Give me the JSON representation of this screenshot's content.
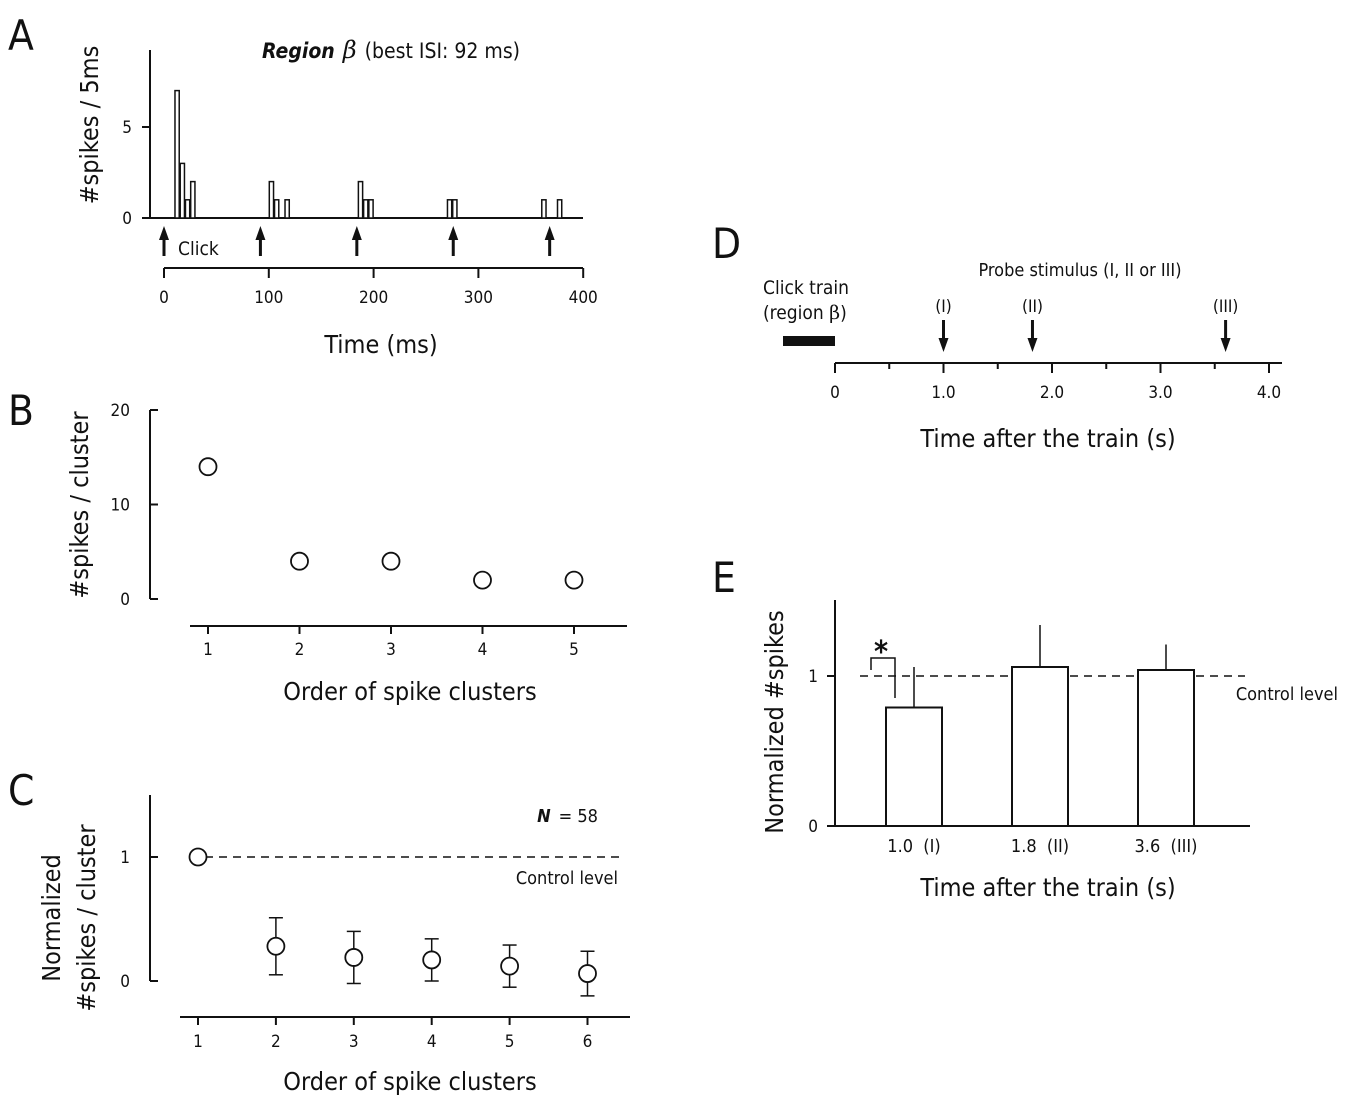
{
  "panels": {
    "A": {
      "label": "A"
    },
    "B": {
      "label": "B"
    },
    "C": {
      "label": "C"
    },
    "D": {
      "label": "D"
    },
    "E": {
      "label": "E"
    }
  },
  "chart_data": [
    {
      "panel": "A",
      "type": "bar",
      "title_italic": "Region",
      "title_symbol": "β",
      "title_rest": "(best ISI: 92 ms)",
      "xlabel": "Time (ms)",
      "ylabel": "#spikes / 5ms",
      "xlim": [
        0,
        400
      ],
      "ylim": [
        0,
        8
      ],
      "xticks": [
        0,
        100,
        200,
        300,
        400
      ],
      "yticks": [
        0,
        5
      ],
      "bin_width_ms": 5,
      "bins": [
        {
          "x": 10,
          "y": 7
        },
        {
          "x": 15,
          "y": 3
        },
        {
          "x": 20,
          "y": 1
        },
        {
          "x": 25,
          "y": 2
        },
        {
          "x": 100,
          "y": 2
        },
        {
          "x": 105,
          "y": 1
        },
        {
          "x": 115,
          "y": 1
        },
        {
          "x": 185,
          "y": 2
        },
        {
          "x": 190,
          "y": 1
        },
        {
          "x": 195,
          "y": 1
        },
        {
          "x": 270,
          "y": 1
        },
        {
          "x": 275,
          "y": 1
        },
        {
          "x": 360,
          "y": 1
        },
        {
          "x": 375,
          "y": 1
        }
      ],
      "click_times_ms": [
        0,
        92,
        184,
        276,
        368
      ],
      "click_label": "Click"
    },
    {
      "panel": "B",
      "type": "scatter",
      "xlabel": "Order of spike clusters",
      "ylabel": "#spikes / cluster",
      "x": [
        1,
        2,
        3,
        4,
        5
      ],
      "y": [
        14,
        4,
        4,
        2,
        2
      ],
      "ylim": [
        0,
        20
      ],
      "yticks": [
        0,
        10,
        20
      ]
    },
    {
      "panel": "C",
      "type": "scatter",
      "xlabel": "Order of spike clusters",
      "ylabel_line1": "Normalized",
      "ylabel_line2": "#spikes / cluster",
      "x": [
        1,
        2,
        3,
        4,
        5,
        6
      ],
      "y": [
        1.0,
        0.28,
        0.19,
        0.17,
        0.12,
        0.06
      ],
      "err": [
        0,
        0.23,
        0.21,
        0.17,
        0.17,
        0.18
      ],
      "ylim": [
        0,
        1.5
      ],
      "yticks": [
        0,
        1
      ],
      "reference_line": 1,
      "reference_label": "Control level",
      "n_label_italic": "N",
      "n_label_rest": "= 58"
    },
    {
      "panel": "D",
      "type": "diagram",
      "xlabel": "Time after the train (s)",
      "xlim": [
        0,
        4.0
      ],
      "xtick_labels": [
        "0",
        "1.0",
        "2.0",
        "3.0",
        "4.0"
      ],
      "xtick_values": [
        0,
        1,
        2,
        3,
        4
      ],
      "train_label_line1": "Click train",
      "train_label_line2_text": "(region ",
      "train_label_line2_symbol": "β",
      "train_label_line2_end": ")",
      "probe_title": "Probe stimulus (I, II or III)",
      "probes": [
        {
          "label": "(I)",
          "t": 1.0
        },
        {
          "label": "(II)",
          "t": 1.82
        },
        {
          "label": "(III)",
          "t": 3.6
        }
      ]
    },
    {
      "panel": "E",
      "type": "bar",
      "xlabel": "Time after the train (s)",
      "ylabel": "Normalized  #spikes",
      "categories": [
        "1.0  (I)",
        "1.8  (II)",
        "3.6  (III)"
      ],
      "values": [
        0.79,
        1.06,
        1.04
      ],
      "err": [
        0.27,
        0.28,
        0.17
      ],
      "ylim": [
        0,
        1.5
      ],
      "yticks": [
        0,
        1
      ],
      "reference_line": 1,
      "reference_label": "Control level",
      "significance": "*"
    }
  ]
}
